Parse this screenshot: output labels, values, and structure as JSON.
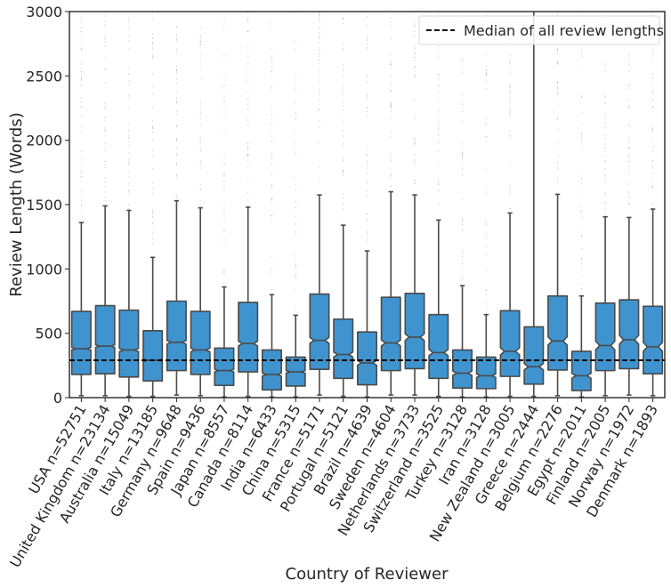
{
  "chart_data": {
    "type": "box",
    "xlabel": "Country of Reviewer",
    "ylabel": "Review Length (Words)",
    "ylim": [
      0,
      3000
    ],
    "yticks": [
      0,
      500,
      1000,
      1500,
      2000,
      2500,
      3000
    ],
    "grid": false,
    "box_color": "#3f94cf",
    "edge_color": "#4a4a4a",
    "notched": true,
    "reference_line": {
      "label": "Median of all review lengths",
      "value": 290,
      "style": "dashed",
      "color": "#000000"
    },
    "legend": {
      "position": "top-right",
      "entries": [
        "Median of all review lengths"
      ]
    },
    "categories": [
      "USA n=52751",
      "United Kingdom n=23134",
      "Australia n=15049",
      "Italy n=13185",
      "Germany n=9648",
      "Spain n=9436",
      "Japan n=8557",
      "Canada n=8114",
      "India n=6433",
      "China n=5315",
      "France n=5171",
      "Portugal n=5121",
      "Brazil n=4639",
      "Sweden n=4604",
      "Netherlands n=3733",
      "Switzerland n=3525",
      "Turkey n=3128",
      "Iran n=3128",
      "New Zealand n=3005",
      "Greece n=2444",
      "Belgium n=2276",
      "Egypt n=2011",
      "Finland n=2005",
      "Norway n=1972",
      "Denmark n=1893"
    ],
    "boxes": [
      {
        "q1": 180,
        "median": 380,
        "q3": 670,
        "whisker_low": 15,
        "whisker_high": 1360,
        "notch_low": 370,
        "notch_high": 390
      },
      {
        "q1": 185,
        "median": 400,
        "q3": 715,
        "whisker_low": 15,
        "whisker_high": 1490,
        "notch_low": 390,
        "notch_high": 410
      },
      {
        "q1": 160,
        "median": 370,
        "q3": 680,
        "whisker_low": 10,
        "whisker_high": 1455,
        "notch_low": 358,
        "notch_high": 382
      },
      {
        "q1": 130,
        "median": 290,
        "q3": 520,
        "whisker_low": 10,
        "whisker_high": 1090,
        "notch_low": 280,
        "notch_high": 300
      },
      {
        "q1": 210,
        "median": 430,
        "q3": 750,
        "whisker_low": 20,
        "whisker_high": 1530,
        "notch_low": 416,
        "notch_high": 444
      },
      {
        "q1": 180,
        "median": 370,
        "q3": 670,
        "whisker_low": 15,
        "whisker_high": 1475,
        "notch_low": 356,
        "notch_high": 384
      },
      {
        "q1": 95,
        "median": 210,
        "q3": 385,
        "whisker_low": 5,
        "whisker_high": 860,
        "notch_low": 200,
        "notch_high": 220
      },
      {
        "q1": 200,
        "median": 420,
        "q3": 740,
        "whisker_low": 10,
        "whisker_high": 1480,
        "notch_low": 402,
        "notch_high": 438
      },
      {
        "q1": 60,
        "median": 180,
        "q3": 370,
        "whisker_low": 5,
        "whisker_high": 800,
        "notch_low": 168,
        "notch_high": 192
      },
      {
        "q1": 90,
        "median": 200,
        "q3": 315,
        "whisker_low": 5,
        "whisker_high": 640,
        "notch_low": 190,
        "notch_high": 210
      },
      {
        "q1": 220,
        "median": 445,
        "q3": 805,
        "whisker_low": 20,
        "whisker_high": 1575,
        "notch_low": 422,
        "notch_high": 468
      },
      {
        "q1": 150,
        "median": 335,
        "q3": 610,
        "whisker_low": 10,
        "whisker_high": 1340,
        "notch_low": 316,
        "notch_high": 354
      },
      {
        "q1": 100,
        "median": 270,
        "q3": 510,
        "whisker_low": 5,
        "whisker_high": 1140,
        "notch_low": 252,
        "notch_high": 288
      },
      {
        "q1": 210,
        "median": 425,
        "q3": 780,
        "whisker_low": 20,
        "whisker_high": 1600,
        "notch_low": 402,
        "notch_high": 448
      },
      {
        "q1": 225,
        "median": 470,
        "q3": 810,
        "whisker_low": 20,
        "whisker_high": 1575,
        "notch_low": 444,
        "notch_high": 496
      },
      {
        "q1": 150,
        "median": 350,
        "q3": 645,
        "whisker_low": 10,
        "whisker_high": 1380,
        "notch_low": 326,
        "notch_high": 374
      },
      {
        "q1": 75,
        "median": 190,
        "q3": 370,
        "whisker_low": 5,
        "whisker_high": 870,
        "notch_low": 174,
        "notch_high": 206
      },
      {
        "q1": 70,
        "median": 170,
        "q3": 315,
        "whisker_low": 5,
        "whisker_high": 645,
        "notch_low": 157,
        "notch_high": 183
      },
      {
        "q1": 165,
        "median": 360,
        "q3": 675,
        "whisker_low": 10,
        "whisker_high": 1435,
        "notch_low": 332,
        "notch_high": 388
      },
      {
        "q1": 105,
        "median": 240,
        "q3": 550,
        "whisker_low": 10,
        "whisker_high": 3000,
        "notch_low": 215,
        "notch_high": 265
      },
      {
        "q1": 215,
        "median": 440,
        "q3": 790,
        "whisker_low": 15,
        "whisker_high": 1580,
        "notch_low": 408,
        "notch_high": 472
      },
      {
        "q1": 55,
        "median": 170,
        "q3": 360,
        "whisker_low": 5,
        "whisker_high": 790,
        "notch_low": 152,
        "notch_high": 188
      },
      {
        "q1": 210,
        "median": 405,
        "q3": 735,
        "whisker_low": 15,
        "whisker_high": 1405,
        "notch_low": 372,
        "notch_high": 438
      },
      {
        "q1": 225,
        "median": 450,
        "q3": 760,
        "whisker_low": 20,
        "whisker_high": 1400,
        "notch_low": 416,
        "notch_high": 484
      },
      {
        "q1": 185,
        "median": 395,
        "q3": 710,
        "whisker_low": 15,
        "whisker_high": 1465,
        "notch_low": 360,
        "notch_high": 430
      }
    ]
  }
}
